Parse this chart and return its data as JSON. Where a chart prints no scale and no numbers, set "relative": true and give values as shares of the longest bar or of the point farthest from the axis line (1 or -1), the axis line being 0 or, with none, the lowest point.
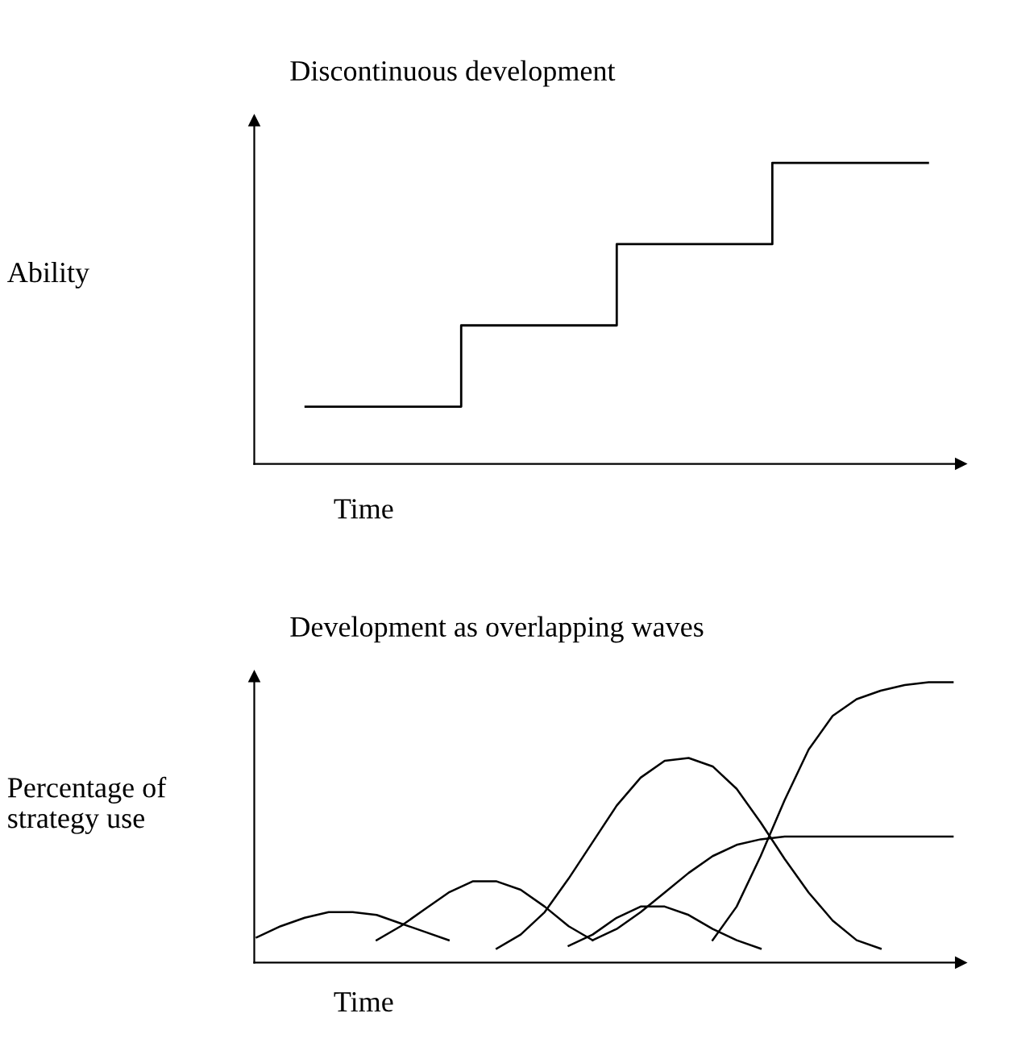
{
  "chart_data": [
    {
      "type": "step",
      "title": "Discontinuous development",
      "ylabel": "Ability",
      "xlabel": "Time",
      "relative": true,
      "categories": [
        null,
        null,
        null,
        null,
        null
      ],
      "series": [
        {
          "color": "#000000",
          "values": [
            0.19,
            0.46,
            0.73,
            1.0,
            1.0
          ]
        }
      ]
    },
    {
      "type": "line",
      "title": "Development as overlapping waves",
      "ylabel": "Percentage of\nstrategy use",
      "xlabel": "Time",
      "relative": true,
      "categories": [
        null,
        null,
        null,
        null,
        null,
        null,
        null,
        null,
        null,
        null,
        null,
        null,
        null,
        null,
        null,
        null,
        null,
        null,
        null,
        null,
        null,
        null,
        null,
        null,
        null,
        null,
        null,
        null,
        null,
        null
      ],
      "series": [
        {
          "color": "#000000",
          "values": [
            0.09,
            0.13,
            0.16,
            0.18,
            0.18,
            0.17,
            0.14,
            0.11,
            0.08,
            null,
            null,
            null,
            null,
            null,
            null,
            null,
            null,
            null,
            null,
            null,
            null,
            null,
            null,
            null,
            null,
            null,
            null,
            null,
            null,
            null
          ]
        },
        {
          "color": "#000000",
          "values": [
            null,
            null,
            null,
            null,
            null,
            0.08,
            0.13,
            0.19,
            0.25,
            0.29,
            0.29,
            0.26,
            0.2,
            0.13,
            0.08,
            null,
            null,
            null,
            null,
            null,
            null,
            null,
            null,
            null,
            null,
            null,
            null,
            null,
            null,
            null
          ]
        },
        {
          "color": "#000000",
          "values": [
            null,
            null,
            null,
            null,
            null,
            null,
            null,
            null,
            null,
            null,
            0.05,
            0.1,
            0.18,
            0.3,
            0.43,
            0.56,
            0.66,
            0.72,
            0.73,
            0.7,
            0.62,
            0.5,
            0.37,
            0.25,
            0.15,
            0.08,
            0.05,
            null,
            null,
            null
          ]
        },
        {
          "color": "#000000",
          "values": [
            null,
            null,
            null,
            null,
            null,
            null,
            null,
            null,
            null,
            null,
            null,
            null,
            null,
            0.06,
            0.1,
            0.16,
            0.2,
            0.2,
            0.17,
            0.12,
            0.08,
            0.05,
            null,
            null,
            null,
            null,
            null,
            null,
            null,
            null
          ]
        },
        {
          "color": "#000000",
          "values": [
            null,
            null,
            null,
            null,
            null,
            null,
            null,
            null,
            null,
            null,
            null,
            null,
            null,
            null,
            0.08,
            0.12,
            0.18,
            0.25,
            0.32,
            0.38,
            0.42,
            0.44,
            0.45,
            0.45,
            0.45,
            0.45,
            0.45,
            0.45,
            0.45,
            0.45
          ]
        },
        {
          "color": "#000000",
          "values": [
            null,
            null,
            null,
            null,
            null,
            null,
            null,
            null,
            null,
            null,
            null,
            null,
            null,
            null,
            null,
            null,
            null,
            null,
            null,
            0.08,
            0.2,
            0.38,
            0.58,
            0.76,
            0.88,
            0.94,
            0.97,
            0.99,
            1.0,
            1.0
          ]
        }
      ]
    }
  ]
}
